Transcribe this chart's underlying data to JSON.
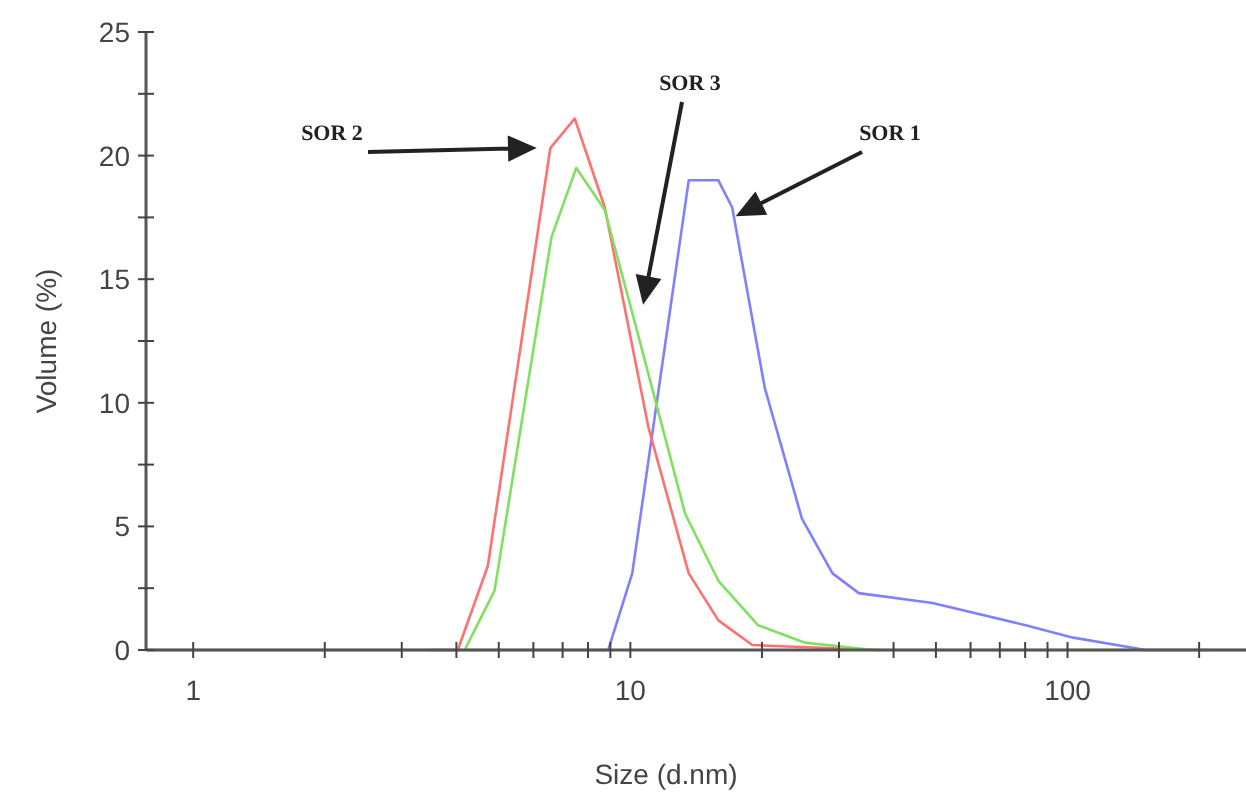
{
  "chart_data": {
    "type": "line",
    "xlabel": "Size (d.nm)",
    "ylabel": "Volume (%)",
    "log": "x",
    "xlim": [
      0.78,
      256
    ],
    "ylim": [
      0,
      25
    ],
    "xticks": [
      1,
      {
        "value": 2,
        "label": null
      },
      {
        "value": 3,
        "label": null
      },
      {
        "value": 4,
        "label": null
      },
      {
        "value": 5,
        "label": null
      },
      {
        "value": 6,
        "label": null
      },
      {
        "value": 7,
        "label": null
      },
      {
        "value": 8,
        "label": null
      },
      {
        "value": 9,
        "label": null
      },
      10,
      {
        "value": 20,
        "label": null
      },
      {
        "value": 30,
        "label": null
      },
      {
        "value": 40,
        "label": null
      },
      {
        "value": 50,
        "label": null
      },
      {
        "value": 60,
        "label": null
      },
      {
        "value": 70,
        "label": null
      },
      {
        "value": 80,
        "label": null
      },
      {
        "value": 90,
        "label": null
      },
      100,
      {
        "value": 200,
        "label": null
      }
    ],
    "yticks": [
      0,
      {
        "value": 2.5,
        "label": null
      },
      5,
      {
        "value": 7.5,
        "label": null
      },
      10,
      {
        "value": 12.5,
        "label": null
      },
      15,
      {
        "value": 17.5,
        "label": null
      },
      20,
      {
        "value": 22.5,
        "label": null
      },
      25
    ],
    "grid": false,
    "marker": "none",
    "line_style": "solid",
    "series": [
      {
        "color": "#8080ff",
        "x": [
          0.78,
          8.9,
          10.1,
          13.6,
          15.9,
          17.1,
          20.3,
          24.7,
          29,
          33.3,
          49.1,
          80.2,
          103,
          151,
          207,
          256
        ],
        "values": [
          0,
          0,
          3.1,
          19,
          19,
          17.9,
          10.6,
          5.3,
          3.1,
          2.3,
          1.9,
          1,
          0.5,
          0,
          0,
          0
        ]
      },
      {
        "color": "#ff7070",
        "x": [
          3.5,
          4.03,
          4.72,
          6.56,
          7.46,
          8.74,
          11,
          13.6,
          15.9,
          19,
          37
        ],
        "values": [
          0,
          0,
          3.4,
          20.3,
          21.5,
          17.9,
          9,
          3.1,
          1.2,
          0.2,
          0
        ]
      },
      {
        "color": "#80e060",
        "x": [
          4.18,
          4.89,
          6.6,
          7.52,
          8.74,
          10.4,
          13.35,
          15.9,
          19.6,
          25,
          36,
          210
        ],
        "values": [
          0,
          2.4,
          16.7,
          19.5,
          17.8,
          12.8,
          5.5,
          2.8,
          1,
          0.3,
          0,
          0
        ]
      }
    ],
    "annotations": [
      "SOR 2",
      "SOR 3",
      "SOR 1"
    ]
  }
}
